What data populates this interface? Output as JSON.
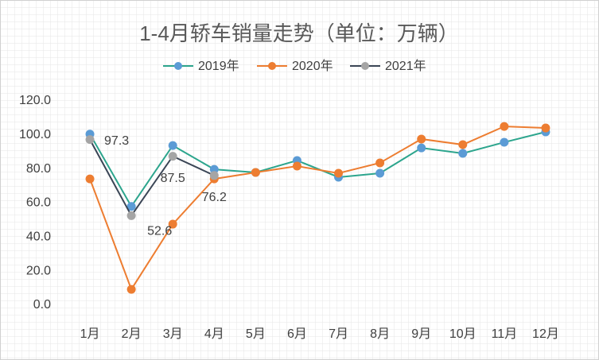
{
  "chart_data": {
    "type": "line",
    "title": "1-4月轿车销量走势（单位：万辆）",
    "categories": [
      "1月",
      "2月",
      "3月",
      "4月",
      "5月",
      "6月",
      "7月",
      "8月",
      "9月",
      "10月",
      "11月",
      "12月"
    ],
    "series": [
      {
        "name": "2019年",
        "color": "#2ca58d",
        "marker_color": "#5b9bd5",
        "values": [
          100.5,
          58,
          93.8,
          79.8,
          78,
          85,
          75.2,
          77.5,
          92.4,
          89.2,
          95.7,
          101.8
        ]
      },
      {
        "name": "2020年",
        "color": "#ed7d31",
        "marker_color": "#ed7d31",
        "values": [
          74.2,
          9.3,
          47.6,
          74.2,
          78,
          81.7,
          77.5,
          83.6,
          97.6,
          94.3,
          105,
          104.1
        ]
      },
      {
        "name": "2021年",
        "color": "#3b4656",
        "marker_color": "#a5a5a5",
        "values": [
          97.3,
          52.6,
          87.5,
          76.2,
          null,
          null,
          null,
          null,
          null,
          null,
          null,
          null
        ],
        "data_labels": true
      }
    ],
    "ylim": [
      0,
      120
    ],
    "yticks": [
      {
        "value": 0,
        "label": "0.0"
      },
      {
        "value": 20,
        "label": "20.0"
      },
      {
        "value": 40,
        "label": "40.0"
      },
      {
        "value": 60,
        "label": "60.0"
      },
      {
        "value": 80,
        "label": "80.0"
      },
      {
        "value": 100,
        "label": "100.0"
      },
      {
        "value": 120,
        "label": "120.0"
      }
    ],
    "legend": "top"
  }
}
